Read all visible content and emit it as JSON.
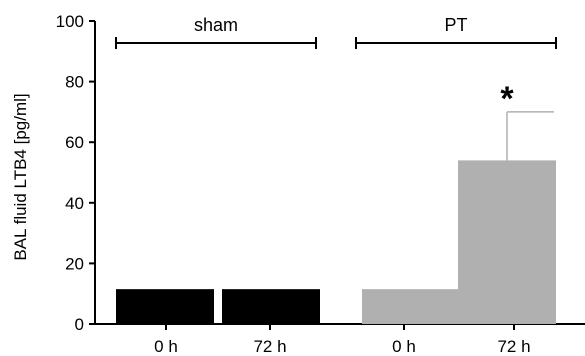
{
  "chart_data": {
    "type": "bar",
    "ylabel": "BAL fluid LTB4 [pg/ml]",
    "ylim": [
      0,
      100
    ],
    "yticks": [
      0,
      20,
      40,
      60,
      80,
      100
    ],
    "grid": false,
    "groups": [
      {
        "label": "sham",
        "categories": [
          "0 h",
          "72 h"
        ]
      },
      {
        "label": "PT",
        "categories": [
          "0 h",
          "72 h"
        ]
      }
    ],
    "categories": [
      "0 h",
      "72 h",
      "0 h",
      "72 h"
    ],
    "values": [
      11.5,
      11.5,
      11.5,
      54
    ],
    "error_upper": [
      null,
      null,
      null,
      70
    ],
    "colors": [
      "#000000",
      "#000000",
      "#b0b0b0",
      "#b0b0b0"
    ],
    "annotations": [
      {
        "bar_index": 3,
        "text": "*"
      }
    ]
  }
}
